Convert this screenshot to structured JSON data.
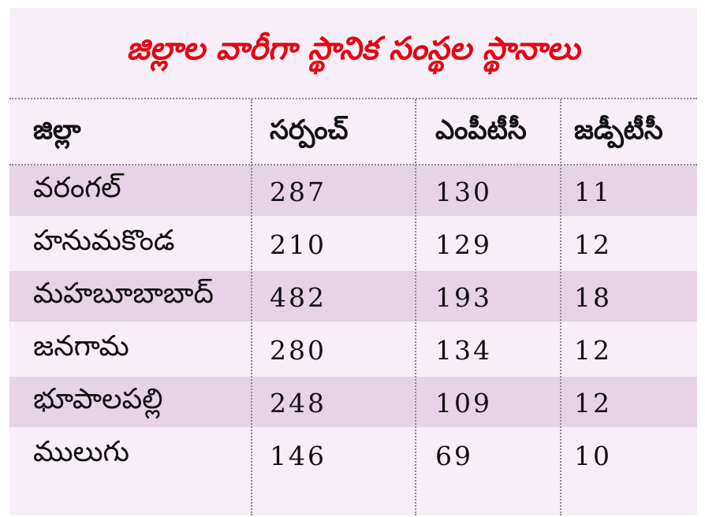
{
  "title": "జిల్లాల వారీగా స్థానిక సంస్థల స్థానాలు",
  "columns": [
    "జిల్లా",
    "సర్పంచ్",
    "ఎంపీటీసీ",
    "జడ్పీటీసీ"
  ],
  "rows": [
    {
      "district": "వరంగల్",
      "sarpanch": "287",
      "mptc": "130",
      "zptc": "11"
    },
    {
      "district": "హనుమకొండ",
      "sarpanch": "210",
      "mptc": "129",
      "zptc": "12"
    },
    {
      "district": "మహబూబాబాద్",
      "sarpanch": "482",
      "mptc": "193",
      "zptc": "18"
    },
    {
      "district": "జనగామ",
      "sarpanch": "280",
      "mptc": "134",
      "zptc": "12"
    },
    {
      "district": "భూపాలపల్లి",
      "sarpanch": "248",
      "mptc": "109",
      "zptc": "12"
    },
    {
      "district": "ములుగు",
      "sarpanch": "146",
      "mptc": "69",
      "zptc": "10"
    }
  ]
}
